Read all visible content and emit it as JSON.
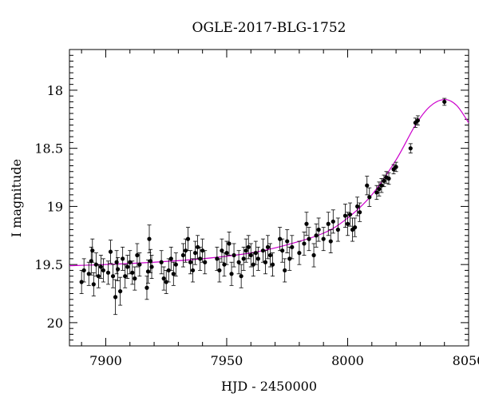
{
  "chart_data": {
    "type": "scatter",
    "title": "OGLE-2017-BLG-1752",
    "xlabel": "HJD - 2450000",
    "ylabel": "I magnitude",
    "xlim": [
      7885,
      8050
    ],
    "ylim": [
      20.2,
      17.65
    ],
    "y_inverted": true,
    "grid": false,
    "legend": "none",
    "x_ticks": [
      7900,
      7950,
      8000,
      8050
    ],
    "x_tick_labels": [
      "7900",
      "7950",
      "8000",
      "8050"
    ],
    "y_ticks": [
      18,
      18.5,
      19,
      19.5,
      20
    ],
    "y_tick_labels": [
      "18",
      "18.5",
      "19",
      "19.5",
      "20"
    ],
    "colors": {
      "points": "#000000",
      "model": "#cc00cc"
    },
    "model_curve": {
      "name": "",
      "x": [
        7885,
        7900,
        7920,
        7940,
        7960,
        7975,
        7990,
        8000,
        8010,
        8020,
        8028,
        8034,
        8040,
        8045,
        8050
      ],
      "y": [
        19.51,
        19.5,
        19.48,
        19.45,
        19.4,
        19.33,
        19.23,
        19.1,
        18.9,
        18.6,
        18.3,
        18.14,
        18.08,
        18.13,
        18.28
      ]
    },
    "series": [
      {
        "name": "",
        "points": [
          {
            "x": 7890,
            "y": 19.65,
            "err": 0.1
          },
          {
            "x": 7891,
            "y": 19.55,
            "err": 0.1
          },
          {
            "x": 7893,
            "y": 19.58,
            "err": 0.1
          },
          {
            "x": 7894,
            "y": 19.47,
            "err": 0.12
          },
          {
            "x": 7894.5,
            "y": 19.38,
            "err": 0.1
          },
          {
            "x": 7895,
            "y": 19.67,
            "err": 0.1
          },
          {
            "x": 7896,
            "y": 19.5,
            "err": 0.1
          },
          {
            "x": 7897,
            "y": 19.6,
            "err": 0.1
          },
          {
            "x": 7898,
            "y": 19.52,
            "err": 0.1
          },
          {
            "x": 7899,
            "y": 19.55,
            "err": 0.1
          },
          {
            "x": 7901,
            "y": 19.57,
            "err": 0.1
          },
          {
            "x": 7902,
            "y": 19.39,
            "err": 0.1
          },
          {
            "x": 7903,
            "y": 19.6,
            "err": 0.1
          },
          {
            "x": 7904,
            "y": 19.78,
            "err": 0.15
          },
          {
            "x": 7904.5,
            "y": 19.48,
            "err": 0.1
          },
          {
            "x": 7905,
            "y": 19.54,
            "err": 0.1
          },
          {
            "x": 7906,
            "y": 19.73,
            "err": 0.12
          },
          {
            "x": 7907,
            "y": 19.45,
            "err": 0.1
          },
          {
            "x": 7908,
            "y": 19.6,
            "err": 0.1
          },
          {
            "x": 7909,
            "y": 19.52,
            "err": 0.1
          },
          {
            "x": 7910,
            "y": 19.48,
            "err": 0.1
          },
          {
            "x": 7911,
            "y": 19.57,
            "err": 0.1
          },
          {
            "x": 7912,
            "y": 19.62,
            "err": 0.1
          },
          {
            "x": 7913,
            "y": 19.42,
            "err": 0.1
          },
          {
            "x": 7914,
            "y": 19.5,
            "err": 0.1
          },
          {
            "x": 7917,
            "y": 19.7,
            "err": 0.1
          },
          {
            "x": 7917.5,
            "y": 19.56,
            "err": 0.1
          },
          {
            "x": 7918,
            "y": 19.28,
            "err": 0.12
          },
          {
            "x": 7918.5,
            "y": 19.47,
            "err": 0.1
          },
          {
            "x": 7919,
            "y": 19.52,
            "err": 0.1
          },
          {
            "x": 7923,
            "y": 19.48,
            "err": 0.1
          },
          {
            "x": 7924,
            "y": 19.62,
            "err": 0.1
          },
          {
            "x": 7925,
            "y": 19.65,
            "err": 0.1
          },
          {
            "x": 7926,
            "y": 19.55,
            "err": 0.1
          },
          {
            "x": 7927,
            "y": 19.45,
            "err": 0.1
          },
          {
            "x": 7928,
            "y": 19.58,
            "err": 0.1
          },
          {
            "x": 7929,
            "y": 19.5,
            "err": 0.1
          },
          {
            "x": 7932,
            "y": 19.42,
            "err": 0.1
          },
          {
            "x": 7933,
            "y": 19.38,
            "err": 0.1
          },
          {
            "x": 7934,
            "y": 19.28,
            "err": 0.1
          },
          {
            "x": 7935,
            "y": 19.48,
            "err": 0.1
          },
          {
            "x": 7936,
            "y": 19.55,
            "err": 0.1
          },
          {
            "x": 7937,
            "y": 19.4,
            "err": 0.1
          },
          {
            "x": 7938,
            "y": 19.35,
            "err": 0.1
          },
          {
            "x": 7939,
            "y": 19.45,
            "err": 0.1
          },
          {
            "x": 7940,
            "y": 19.38,
            "err": 0.1
          },
          {
            "x": 7941,
            "y": 19.48,
            "err": 0.1
          },
          {
            "x": 7946,
            "y": 19.45,
            "err": 0.1
          },
          {
            "x": 7947,
            "y": 19.55,
            "err": 0.1
          },
          {
            "x": 7948,
            "y": 19.38,
            "err": 0.1
          },
          {
            "x": 7949,
            "y": 19.5,
            "err": 0.1
          },
          {
            "x": 7950,
            "y": 19.4,
            "err": 0.1
          },
          {
            "x": 7951,
            "y": 19.32,
            "err": 0.1
          },
          {
            "x": 7952,
            "y": 19.58,
            "err": 0.1
          },
          {
            "x": 7953,
            "y": 19.42,
            "err": 0.1
          },
          {
            "x": 7955,
            "y": 19.48,
            "err": 0.1
          },
          {
            "x": 7956,
            "y": 19.6,
            "err": 0.1
          },
          {
            "x": 7957,
            "y": 19.45,
            "err": 0.1
          },
          {
            "x": 7958,
            "y": 19.38,
            "err": 0.1
          },
          {
            "x": 7959,
            "y": 19.35,
            "err": 0.1
          },
          {
            "x": 7960,
            "y": 19.42,
            "err": 0.1
          },
          {
            "x": 7961,
            "y": 19.5,
            "err": 0.1
          },
          {
            "x": 7962,
            "y": 19.4,
            "err": 0.1
          },
          {
            "x": 7963,
            "y": 19.45,
            "err": 0.1
          },
          {
            "x": 7965,
            "y": 19.38,
            "err": 0.1
          },
          {
            "x": 7966,
            "y": 19.48,
            "err": 0.1
          },
          {
            "x": 7967,
            "y": 19.35,
            "err": 0.1
          },
          {
            "x": 7968,
            "y": 19.42,
            "err": 0.1
          },
          {
            "x": 7969,
            "y": 19.5,
            "err": 0.1
          },
          {
            "x": 7972,
            "y": 19.28,
            "err": 0.1
          },
          {
            "x": 7973,
            "y": 19.38,
            "err": 0.1
          },
          {
            "x": 7974,
            "y": 19.55,
            "err": 0.1
          },
          {
            "x": 7975,
            "y": 19.3,
            "err": 0.1
          },
          {
            "x": 7976,
            "y": 19.45,
            "err": 0.1
          },
          {
            "x": 7977,
            "y": 19.35,
            "err": 0.1
          },
          {
            "x": 7980,
            "y": 19.4,
            "err": 0.1
          },
          {
            "x": 7982,
            "y": 19.32,
            "err": 0.1
          },
          {
            "x": 7983,
            "y": 19.15,
            "err": 0.1
          },
          {
            "x": 7984,
            "y": 19.28,
            "err": 0.1
          },
          {
            "x": 7986,
            "y": 19.42,
            "err": 0.1
          },
          {
            "x": 7987,
            "y": 19.25,
            "err": 0.1
          },
          {
            "x": 7988,
            "y": 19.2,
            "err": 0.1
          },
          {
            "x": 7990,
            "y": 19.28,
            "err": 0.1
          },
          {
            "x": 7992,
            "y": 19.15,
            "err": 0.1
          },
          {
            "x": 7993,
            "y": 19.3,
            "err": 0.1
          },
          {
            "x": 7994,
            "y": 19.13,
            "err": 0.1
          },
          {
            "x": 7996,
            "y": 19.2,
            "err": 0.1
          },
          {
            "x": 7999,
            "y": 19.08,
            "err": 0.1
          },
          {
            "x": 8000,
            "y": 19.15,
            "err": 0.1
          },
          {
            "x": 8001,
            "y": 19.07,
            "err": 0.1
          },
          {
            "x": 8002,
            "y": 19.2,
            "err": 0.1
          },
          {
            "x": 8003,
            "y": 19.18,
            "err": 0.08
          },
          {
            "x": 8004,
            "y": 19.0,
            "err": 0.08
          },
          {
            "x": 8005,
            "y": 19.05,
            "err": 0.08
          },
          {
            "x": 8008,
            "y": 18.82,
            "err": 0.08
          },
          {
            "x": 8009,
            "y": 18.92,
            "err": 0.08
          },
          {
            "x": 8012,
            "y": 18.88,
            "err": 0.06
          },
          {
            "x": 8013,
            "y": 18.85,
            "err": 0.06
          },
          {
            "x": 8014,
            "y": 18.82,
            "err": 0.06
          },
          {
            "x": 8015,
            "y": 18.78,
            "err": 0.05
          },
          {
            "x": 8016,
            "y": 18.75,
            "err": 0.05
          },
          {
            "x": 8017,
            "y": 18.76,
            "err": 0.05
          },
          {
            "x": 8019,
            "y": 18.68,
            "err": 0.04
          },
          {
            "x": 8020,
            "y": 18.66,
            "err": 0.04
          },
          {
            "x": 8026,
            "y": 18.5,
            "err": 0.04
          },
          {
            "x": 8028,
            "y": 18.28,
            "err": 0.04
          },
          {
            "x": 8029,
            "y": 18.26,
            "err": 0.04
          },
          {
            "x": 8040,
            "y": 18.1,
            "err": 0.03
          }
        ]
      }
    ]
  }
}
